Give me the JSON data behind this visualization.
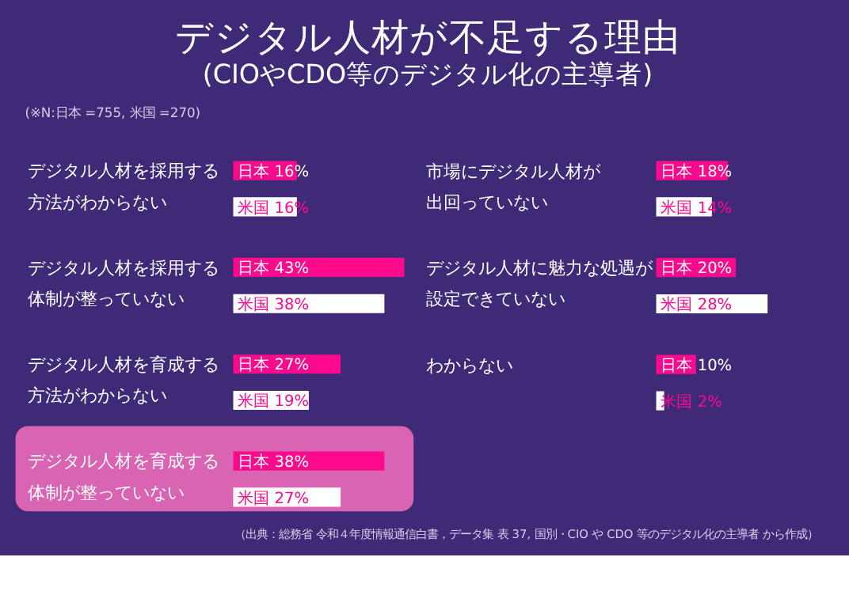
{
  "chart_data": [
    {
      "type": "bar",
      "orientation": "horizontal",
      "title": "デジタル人材が不足する理由",
      "subtitle": "(CIOやCDO等のデジタル化の主導者)",
      "annotations": [
        "(※N:日本 =755, 米国 =270)",
        "（出典：総務省 令和４年度情報通信白書，データ集 表 37, 国別・CIO や CDO 等のデジタル化の主導者 から作成）"
      ],
      "categories": [
        "デジタル人材を採用する方法がわからない",
        "デジタル人材を採用する体制が整っていない",
        "デジタル人材を育成する方法がわからない",
        "デジタル人材を育成する体制が整っていない"
      ],
      "series": [
        {
          "color": "#ff0a8c",
          "values": [
            16,
            43,
            27,
            38
          ],
          "value_labels": [
            "日本 16%",
            "日本 43%",
            "日本 27%",
            "日本 38%"
          ]
        },
        {
          "color": "#ffffff",
          "values": [
            16,
            38,
            19,
            27
          ],
          "value_labels": [
            "米国 16%",
            "米国 38%",
            "米国 19%",
            "米国 27%"
          ]
        }
      ],
      "bands": [
        {
          "axis": "y",
          "from": "デジタル人材を育成する体制が整っていない",
          "to": "デジタル人材を育成する体制が整っていない",
          "color": "#d964b4"
        }
      ]
    },
    {
      "type": "bar",
      "orientation": "horizontal",
      "categories": [
        "市場にデジタル人材が出回っていない",
        "デジタル人材に魅力な処遇が設定できていない",
        "わからない"
      ],
      "series": [
        {
          "color": "#ff0a8c",
          "values": [
            18,
            20,
            10
          ],
          "value_labels": [
            "日本 18%",
            "日本 20%",
            "日本 10%"
          ]
        },
        {
          "color": "#ffffff",
          "values": [
            14,
            28,
            2
          ],
          "value_labels": [
            "米国 14%",
            "米国 28%",
            "米国 2%"
          ]
        }
      ]
    }
  ]
}
